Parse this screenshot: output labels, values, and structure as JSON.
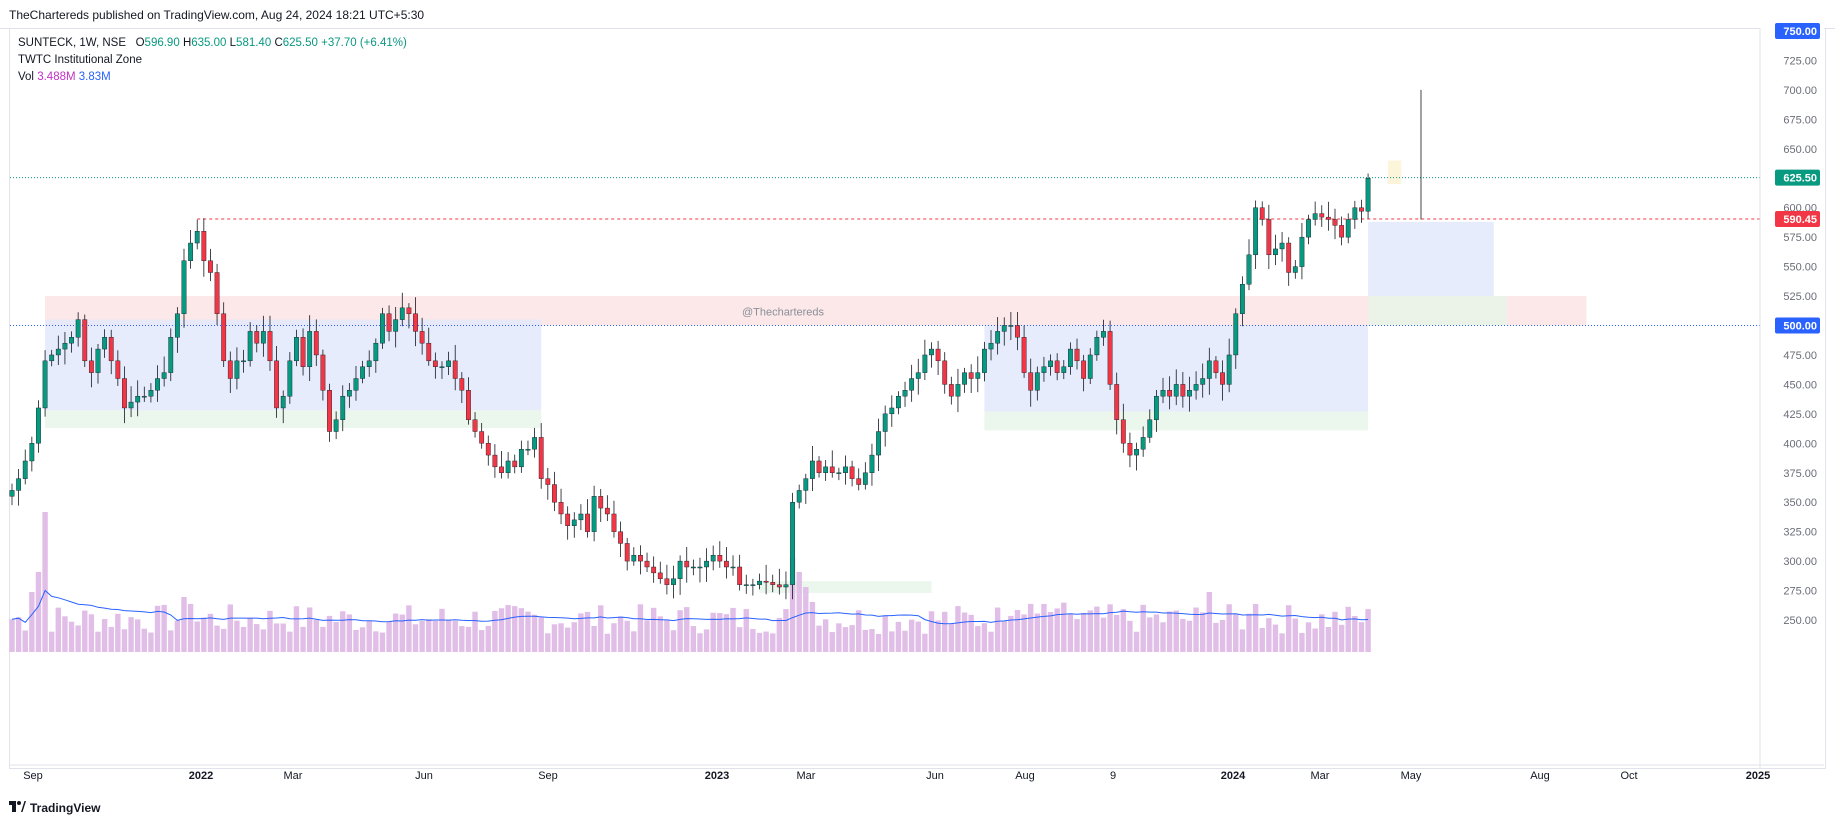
{
  "header": {
    "published": "TheChartereds published on TradingView.com, Aug 24, 2024 18:21 UTC+5:30"
  },
  "legend": {
    "symbol_line": "SUNTECK, 1W, NSE",
    "open_label": "O",
    "open": "596.90",
    "high_label": "H",
    "high": "635.00",
    "low_label": "L",
    "low": "581.40",
    "close_label": "C",
    "close": "625.50",
    "change": "+37.70 (+6.41%)",
    "indicator": "TWTC Institutional Zone",
    "vol_label": "Vol",
    "vol_value": "3.488M",
    "vol_ma": "3.83M"
  },
  "watermark": "@Thechartereds",
  "footer": {
    "brand": "TradingView"
  },
  "colors": {
    "up": "#089981",
    "down": "#f23645",
    "volume_bar": "#e1bee7",
    "volume_ma": "#2962ff",
    "blue_zone": "#e3e9fb",
    "red_zone": "#fce5e6",
    "green_zone": "#e8f5e9",
    "label_blue": "#2962ff",
    "label_green": "#089981",
    "label_red": "#f23645"
  },
  "chart_data": {
    "type": "candlestick",
    "symbol": "SUNTECK",
    "interval": "1W",
    "exchange": "NSE",
    "y_axis": {
      "ticks": [
        "250.00",
        "275.00",
        "300.00",
        "325.00",
        "350.00",
        "375.00",
        "400.00",
        "425.00",
        "450.00",
        "475.00",
        "500.00",
        "525.00",
        "550.00",
        "575.00",
        "600.00",
        "625.00",
        "650.00",
        "675.00",
        "700.00",
        "725.00",
        "750.00"
      ],
      "range": [
        225,
        760
      ]
    },
    "x_axis": {
      "labels": [
        "Sep",
        "2022",
        "Mar",
        "Jun",
        "Sep",
        "2023",
        "Mar",
        "Jun",
        "Aug",
        "9",
        "2024",
        "Mar",
        "May",
        "Aug",
        "Oct",
        "2025"
      ],
      "bold": [
        false,
        true,
        false,
        false,
        false,
        true,
        false,
        false,
        false,
        false,
        true,
        false,
        false,
        false,
        false,
        true
      ]
    },
    "price_labels": [
      {
        "text": "750.00",
        "value": 750,
        "kind": "blue"
      },
      {
        "text": "625.50",
        "value": 625.5,
        "kind": "green"
      },
      {
        "text": "590.45",
        "value": 590.45,
        "kind": "red"
      },
      {
        "text": "500.00",
        "value": 500,
        "kind": "blue"
      }
    ],
    "horizontal_lines": [
      {
        "value": 625.5,
        "style": "dotted",
        "color": "#089981"
      },
      {
        "value": 500,
        "style": "dotted",
        "color": "#2962ff"
      },
      {
        "value": 590.45,
        "style": "dashed",
        "color": "#f23645",
        "from_week": 28
      }
    ],
    "zones": [
      {
        "kind": "red",
        "from_week": 5,
        "to_week": 238,
        "top": 525,
        "bottom": 500
      },
      {
        "kind": "blue",
        "from_week": 5,
        "to_week": 80,
        "top": 505,
        "bottom": 428
      },
      {
        "kind": "green",
        "from_week": 5,
        "to_week": 80,
        "top": 428,
        "bottom": 413
      },
      {
        "kind": "green",
        "from_week": 113,
        "to_week": 139,
        "top": 283,
        "bottom": 273
      },
      {
        "kind": "blue",
        "from_week": 147,
        "to_week": 205,
        "top": 500,
        "bottom": 427
      },
      {
        "kind": "green",
        "from_week": 147,
        "to_week": 205,
        "top": 427,
        "bottom": 411
      },
      {
        "kind": "blue",
        "from_week": 205,
        "to_week": 224,
        "top": 588,
        "bottom": 525
      },
      {
        "kind": "green",
        "from_week": 205,
        "to_week": 226,
        "top": 525,
        "bottom": 500
      },
      {
        "kind": "yellow",
        "from_week": 208,
        "to_week": 210,
        "top": 640,
        "bottom": 620
      }
    ],
    "closes": [
      360,
      370,
      385,
      400,
      430,
      470,
      475,
      480,
      485,
      490,
      505,
      470,
      460,
      480,
      490,
      470,
      455,
      430,
      435,
      440,
      440,
      445,
      455,
      460,
      490,
      510,
      555,
      570,
      580,
      555,
      545,
      510,
      470,
      455,
      470,
      470,
      495,
      485,
      495,
      470,
      430,
      440,
      470,
      490,
      465,
      495,
      475,
      445,
      410,
      420,
      440,
      445,
      455,
      465,
      470,
      485,
      510,
      495,
      505,
      515,
      510,
      495,
      485,
      470,
      465,
      465,
      470,
      455,
      445,
      420,
      410,
      400,
      390,
      380,
      375,
      385,
      380,
      395,
      395,
      405,
      370,
      365,
      350,
      340,
      330,
      335,
      340,
      325,
      355,
      345,
      340,
      325,
      315,
      300,
      305,
      300,
      295,
      290,
      285,
      280,
      285,
      300,
      295,
      295,
      295,
      300,
      305,
      300,
      295,
      295,
      280,
      280,
      280,
      283,
      282,
      280,
      278,
      280,
      350,
      360,
      370,
      385,
      375,
      380,
      375,
      375,
      380,
      370,
      365,
      375,
      390,
      410,
      425,
      430,
      440,
      445,
      455,
      460,
      475,
      480,
      470,
      450,
      440,
      450,
      460,
      455,
      460,
      480,
      485,
      495,
      500,
      500,
      490,
      460,
      445,
      460,
      465,
      470,
      460,
      465,
      480,
      470,
      455,
      475,
      490,
      495,
      450,
      420,
      400,
      390,
      395,
      405,
      420,
      440,
      445,
      440,
      450,
      440,
      445,
      450,
      455,
      470,
      460,
      450,
      475,
      510,
      535,
      560,
      600,
      590,
      560,
      565,
      570,
      545,
      550,
      575,
      590,
      595,
      592,
      590,
      585,
      575,
      590,
      600,
      597,
      625
    ]
  }
}
